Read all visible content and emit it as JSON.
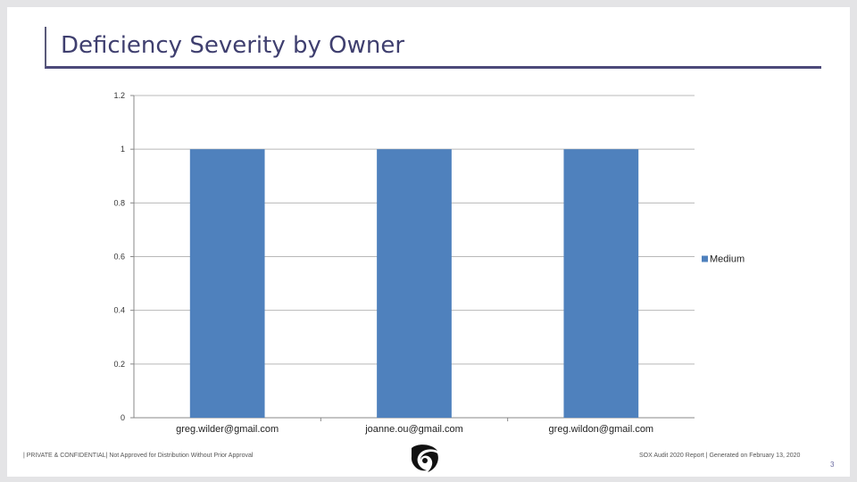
{
  "slide": {
    "title": "Deficiency Severity by Owner",
    "footer_left": "| PRIVATE & CONFIDENTIAL| Not Approved for Distribution Without Prior Approval",
    "footer_right": "SOX Audit 2020 Report | Generated on February 13, 2020",
    "page_number": "3",
    "logo_icon": "swirl-logo-icon"
  },
  "chart_data": {
    "type": "bar",
    "categories": [
      "greg.wilder@gmail.com",
      "joanne.ou@gmail.com",
      "greg.wildon@gmail.com"
    ],
    "series": [
      {
        "name": "Medium",
        "values": [
          1,
          1,
          1
        ],
        "color": "#4f81bd"
      }
    ],
    "yticks": [
      "0",
      "0.2",
      "0.4",
      "0.6",
      "0.8",
      "1",
      "1.2"
    ],
    "ylim": [
      0,
      1.2
    ],
    "grid": true,
    "legend_position": "right"
  }
}
